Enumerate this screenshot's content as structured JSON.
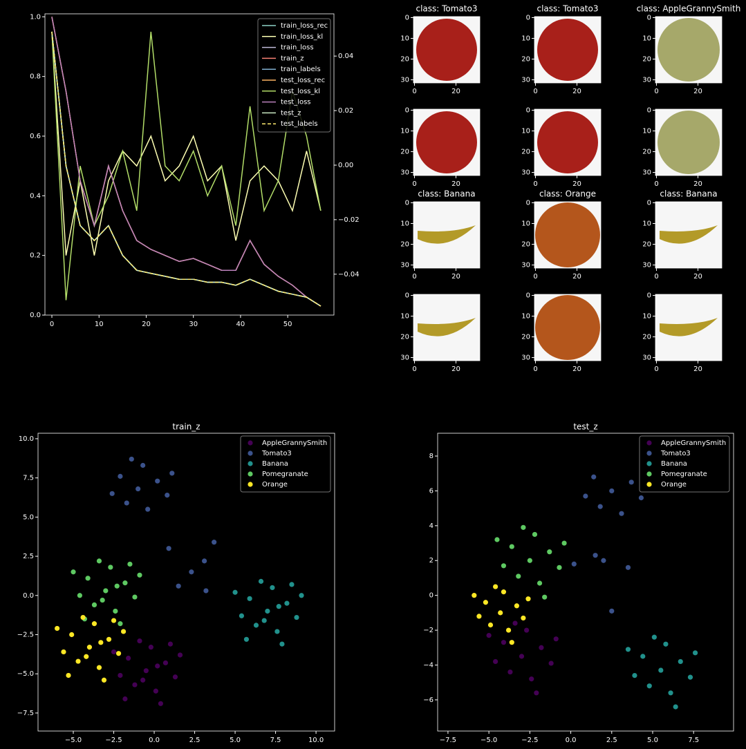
{
  "chart_data": [
    {
      "type": "line",
      "legend": "upper right",
      "x": [
        0,
        3,
        6,
        9,
        12,
        15,
        18,
        21,
        24,
        27,
        30,
        33,
        36,
        39,
        42,
        45,
        48,
        51,
        54,
        57
      ],
      "xlim": [
        -1.47,
        59.8
      ],
      "xticks": [
        0,
        10,
        20,
        30,
        40,
        50
      ],
      "ylim": [
        0,
        1.01
      ],
      "yticks": [
        {
          "value": 0,
          "label": "0.0"
        },
        0.2,
        0.4,
        0.6,
        0.8,
        {
          "value": 1,
          "label": "1.0"
        }
      ],
      "y2lim": [
        -0.055,
        0.0555
      ],
      "y2ticks": [
        {
          "value": -0.04,
          "label": "−0.04"
        },
        {
          "value": -0.02,
          "label": "−0.02"
        },
        {
          "value": 0,
          "label": "0.00"
        },
        0.02,
        0.04
      ],
      "series": [
        {
          "name": "train_loss_rec",
          "color": "#8dd3c7",
          "values": [
            0.95,
            0.5,
            0.3,
            0.25,
            0.3,
            0.2,
            0.15,
            0.14,
            0.13,
            0.12,
            0.12,
            0.11,
            0.11,
            0.1,
            0.12,
            0.1,
            0.08,
            0.07,
            0.06,
            0.03
          ]
        },
        {
          "name": "train_loss_kl",
          "color": "#feffb3",
          "values": [
            0.95,
            0.2,
            0.45,
            0.2,
            0.45,
            0.55,
            0.5,
            0.6,
            0.45,
            0.5,
            0.6,
            0.45,
            0.5,
            0.25,
            0.45,
            0.5,
            0.45,
            0.35,
            0.55,
            0.35
          ]
        },
        {
          "name": "train_loss",
          "color": "#bfbbd9",
          "values": [
            0.95,
            0.5,
            0.3,
            0.25,
            0.3,
            0.2,
            0.15,
            0.14,
            0.13,
            0.12,
            0.12,
            0.11,
            0.11,
            0.1,
            0.12,
            0.1,
            0.08,
            0.07,
            0.06,
            0.03
          ]
        },
        {
          "name": "train_z",
          "color": "#fa8174",
          "values": [
            1.0,
            0.75,
            0.45,
            0.3,
            0.5,
            0.35,
            0.25,
            0.22,
            0.2,
            0.18,
            0.19,
            0.17,
            0.15,
            0.15,
            0.25,
            0.17,
            0.13,
            0.1,
            0.06,
            0.03
          ]
        },
        {
          "name": "train_labels",
          "color": "#81b1d2",
          "values": [
            0.95,
            0.5,
            0.3,
            0.25,
            0.3,
            0.2,
            0.15,
            0.14,
            0.13,
            0.12,
            0.12,
            0.11,
            0.11,
            0.1,
            0.12,
            0.1,
            0.08,
            0.07,
            0.06,
            0.03
          ]
        },
        {
          "name": "test_loss_rec",
          "color": "#fdb462",
          "values": [
            1.0,
            0.75,
            0.45,
            0.3,
            0.5,
            0.35,
            0.25,
            0.22,
            0.2,
            0.18,
            0.19,
            0.17,
            0.15,
            0.15,
            0.25,
            0.17,
            0.13,
            0.1,
            0.06,
            0.03
          ]
        },
        {
          "name": "test_loss_kl",
          "color": "#b3de69",
          "values": [
            0.95,
            0.05,
            0.5,
            0.3,
            0.4,
            0.55,
            0.35,
            0.95,
            0.5,
            0.45,
            0.55,
            0.4,
            0.5,
            0.3,
            0.7,
            0.35,
            0.45,
            0.75,
            0.6,
            0.35
          ]
        },
        {
          "name": "test_loss",
          "color": "#bc82bd",
          "values": [
            1.0,
            0.75,
            0.45,
            0.3,
            0.5,
            0.35,
            0.25,
            0.22,
            0.2,
            0.18,
            0.19,
            0.17,
            0.15,
            0.15,
            0.25,
            0.17,
            0.13,
            0.1,
            0.06,
            0.03
          ]
        },
        {
          "name": "test_z",
          "color": "#ccebc4",
          "values": [
            0.95,
            0.5,
            0.3,
            0.25,
            0.3,
            0.2,
            0.15,
            0.14,
            0.13,
            0.12,
            0.12,
            0.11,
            0.11,
            0.1,
            0.12,
            0.1,
            0.08,
            0.07,
            0.06,
            0.03
          ]
        },
        {
          "name": "test_labels",
          "color": "#ffed6f",
          "linestyle": "dashed",
          "values": [
            0.95,
            0.5,
            0.3,
            0.25,
            0.3,
            0.2,
            0.15,
            0.14,
            0.13,
            0.12,
            0.12,
            0.11,
            0.11,
            0.1,
            0.12,
            0.1,
            0.08,
            0.07,
            0.06,
            0.03
          ]
        }
      ]
    },
    {
      "type": "scatter",
      "title": "train_z",
      "legend": "upper right",
      "xlim": [
        -7.18,
        11.15
      ],
      "xticks": [
        {
          "value": -5,
          "label": "−5.0"
        },
        {
          "value": -2.5,
          "label": "−2.5"
        },
        {
          "value": 0,
          "label": "0.0"
        },
        2.5,
        {
          "value": 5,
          "label": "5.0"
        },
        7.5,
        {
          "value": 10,
          "label": "10.0"
        }
      ],
      "ylim": [
        -8.65,
        10.35
      ],
      "yticks": [
        {
          "value": -7.5,
          "label": "−7.5"
        },
        {
          "value": -5,
          "label": "−5.0"
        },
        {
          "value": -2.5,
          "label": "−2.5"
        },
        {
          "value": 0,
          "label": "0.0"
        },
        2.5,
        {
          "value": 5,
          "label": "5.0"
        },
        7.5,
        {
          "value": 10,
          "label": "10.0"
        }
      ],
      "series": [
        {
          "name": "AppleGrannySmith",
          "color": "#440154",
          "x": [
            -0.5,
            0.7,
            -1.6,
            0.1,
            -1.2,
            1.3,
            -2.1,
            -0.2,
            -0.9,
            1.6,
            -2.5,
            0.4,
            -1.8,
            1.0,
            -0.7,
            0.2
          ],
          "y": [
            -4.8,
            -4.3,
            -4.0,
            -6.1,
            -5.7,
            -5.2,
            -5.1,
            -3.3,
            -2.9,
            -3.8,
            -3.6,
            -6.9,
            -6.6,
            -3.1,
            -5.4,
            -4.5
          ]
        },
        {
          "name": "Tomato3",
          "color": "#3b528b",
          "x": [
            -1,
            0.2,
            -2.1,
            -0.4,
            -1.7,
            0.8,
            -2.6,
            -0.7,
            -1.4,
            1.1,
            0.9,
            3.2,
            1.5,
            3.7,
            2.3,
            3.1
          ],
          "y": [
            6.8,
            7.3,
            7.6,
            5.5,
            5.9,
            6.4,
            6.5,
            8.3,
            8.7,
            7.8,
            3.0,
            0.3,
            0.6,
            3.4,
            1.5,
            2.2
          ]
        },
        {
          "name": "Banana",
          "color": "#21918c",
          "x": [
            7,
            8.2,
            5.9,
            7.6,
            6.3,
            8.8,
            5.4,
            7.3,
            6.6,
            9.1,
            5.0,
            7.9,
            5.7,
            8.5,
            6.8,
            7.7
          ],
          "y": [
            -1,
            -0.5,
            -0.2,
            -2.3,
            -1.9,
            -1.4,
            -1.3,
            0.5,
            0.9,
            0,
            0.2,
            -3.1,
            -2.8,
            0.7,
            -1.6,
            -0.7
          ]
        },
        {
          "name": "Pomegranate",
          "color": "#5ec962",
          "x": [
            -3,
            -1.8,
            -4.1,
            -2.4,
            -3.7,
            -1.2,
            -4.6,
            -2.7,
            -3.4,
            -0.9,
            -5.0,
            -2.1,
            -4.3,
            -1.5,
            -3.2,
            -2.3
          ],
          "y": [
            0.3,
            0.8,
            1.1,
            -1.0,
            -0.6,
            -0.1,
            0,
            1.8,
            2.2,
            1.3,
            1.5,
            -1.8,
            -1.5,
            2.0,
            -0.3,
            0.6
          ]
        },
        {
          "name": "Orange",
          "color": "#fde725",
          "x": [
            -4,
            -2.8,
            -5.1,
            -3.4,
            -4.7,
            -2.2,
            -5.6,
            -3.7,
            -4.4,
            -1.9,
            -6.0,
            -3.1,
            -5.3,
            -2.5,
            -4.2,
            -3.3
          ],
          "y": [
            -3.3,
            -2.8,
            -2.5,
            -4.6,
            -4.2,
            -3.7,
            -3.6,
            -1.8,
            -1.4,
            -2.3,
            -2.1,
            -5.4,
            -5.1,
            -1.6,
            -3.9,
            -3.0
          ]
        }
      ]
    },
    {
      "type": "scatter",
      "title": "test_z",
      "legend": "upper right",
      "xlim": [
        -8.13,
        9.94
      ],
      "xticks": [
        {
          "value": -7.5,
          "label": "−7.5"
        },
        {
          "value": -5,
          "label": "−5.0"
        },
        {
          "value": -2.5,
          "label": "−2.5"
        },
        {
          "value": 0,
          "label": "0.0"
        },
        2.5,
        {
          "value": 5,
          "label": "5.0"
        },
        7.5
      ],
      "ylim": [
        -7.79,
        9.31
      ],
      "yticks": [
        {
          "value": -6,
          "label": "−6"
        },
        {
          "value": -4,
          "label": "−4"
        },
        {
          "value": -2,
          "label": "−2"
        },
        0,
        2,
        4,
        6,
        8
      ],
      "series": [
        {
          "name": "AppleGrannySmith",
          "color": "#440154",
          "x": [
            -3,
            -1.8,
            -4.1,
            -2.4,
            -3.7,
            -1.2,
            -4.6,
            -2.7,
            -3.4,
            -0.9,
            -5.0,
            -2.1
          ],
          "y": [
            -3.5,
            -3.0,
            -2.7,
            -4.8,
            -4.4,
            -3.9,
            -3.8,
            -2.0,
            -1.6,
            -2.5,
            -2.3,
            -5.6
          ]
        },
        {
          "name": "Tomato3",
          "color": "#3b528b",
          "x": [
            2.5,
            3.7,
            1.4,
            3.1,
            1.8,
            4.3,
            0.9,
            2.0,
            1.5,
            3.5,
            0.2,
            2.5
          ],
          "y": [
            6,
            6.5,
            6.8,
            4.7,
            5.1,
            5.6,
            5.7,
            2.0,
            2.3,
            1.6,
            1.8,
            -0.9
          ]
        },
        {
          "name": "Banana",
          "color": "#21918c",
          "x": [
            5.5,
            6.7,
            4.4,
            6.1,
            4.8,
            7.3,
            3.9,
            5.8,
            5.1,
            7.6,
            3.5,
            6.4
          ],
          "y": [
            -4.3,
            -3.8,
            -3.5,
            -5.6,
            -5.2,
            -4.7,
            -4.6,
            -2.8,
            -2.4,
            -3.3,
            -3.1,
            -6.4
          ]
        },
        {
          "name": "Pomegranate",
          "color": "#5ec962",
          "x": [
            -2.5,
            -1.3,
            -3.6,
            -1.9,
            -3.2,
            -0.7,
            -4.1,
            -2.2,
            -2.9,
            -0.4,
            -4.5,
            -1.6
          ],
          "y": [
            2,
            2.5,
            2.8,
            0.7,
            1.1,
            1.6,
            1.7,
            3.5,
            3.9,
            3.0,
            3.2,
            -0.1
          ]
        },
        {
          "name": "Orange",
          "color": "#fde725",
          "x": [
            -4.3,
            -3.3,
            -5.2,
            -3.8,
            -4.9,
            -2.9,
            -5.6,
            -4.1,
            -4.6,
            -2.6,
            -5.9,
            -3.6
          ],
          "y": [
            -1,
            -0.6,
            -0.4,
            -2.0,
            -1.7,
            -1.3,
            -1.2,
            0.2,
            0.5,
            -0.2,
            0,
            -2.7
          ]
        }
      ]
    }
  ],
  "image_grid": {
    "titles": [
      "class: Tomato3",
      "class: Tomato3",
      "class: AppleGrannySmith",
      "class: Banana",
      "class: Orange",
      "class: Banana"
    ],
    "xticks": [
      0,
      20
    ],
    "yticks": [
      0,
      10,
      20,
      30
    ]
  }
}
